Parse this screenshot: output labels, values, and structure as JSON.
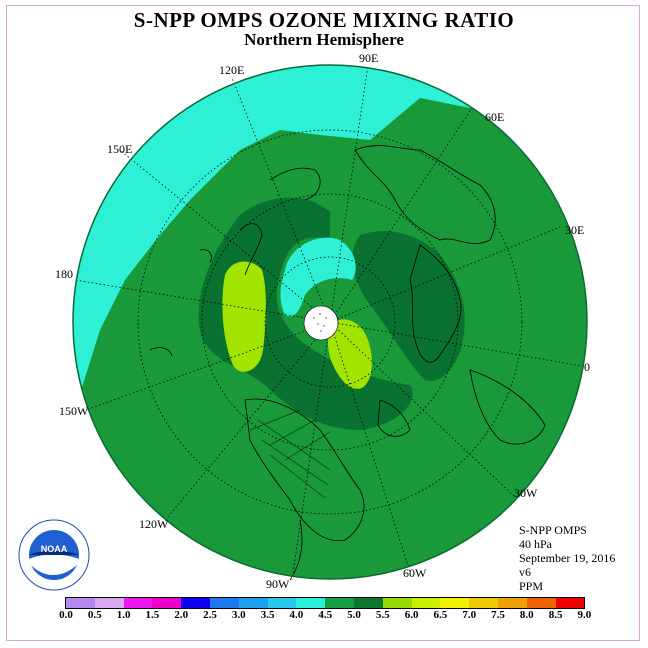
{
  "title": "S-NPP OMPS OZONE MIXING RATIO",
  "subtitle": "Northern Hemisphere",
  "longitude_labels": [
    "90E",
    "60E",
    "30E",
    "0",
    "30W",
    "60W",
    "90W",
    "120W",
    "150W",
    "180",
    "150E",
    "120E"
  ],
  "info": {
    "instrument": "S-NPP OMPS",
    "level": "40 hPa",
    "date": "September 19, 2016",
    "version": "v6",
    "units": "PPM"
  },
  "colorbar": {
    "ticks": [
      "0.0",
      "0.5",
      "1.0",
      "1.5",
      "2.0",
      "2.5",
      "3.0",
      "3.5",
      "4.0",
      "4.5",
      "5.0",
      "5.5",
      "6.0",
      "6.5",
      "7.0",
      "7.5",
      "8.0",
      "8.5",
      "9.0"
    ],
    "colors": [
      "#b488f0",
      "#d8a8f0",
      "#f018f0",
      "#f000c8",
      "#1000f0",
      "#1e78f0",
      "#1ea0f0",
      "#28c8f0",
      "#28f0d8",
      "#14a040",
      "#0a7830",
      "#96dc00",
      "#c8f000",
      "#f0f000",
      "#f0c800",
      "#f0a000",
      "#f06400",
      "#f00000",
      "#8c5a3c"
    ]
  },
  "map_colors": {
    "range_3_5_to_4_0": "#2ef0d6",
    "range_4_0_to_4_5": "#19993a",
    "range_4_5_to_5_0": "#0a7230",
    "range_5_0_to_5_5": "#a0e400",
    "no_data": "#ffffff"
  },
  "logo_text": "NOAA"
}
